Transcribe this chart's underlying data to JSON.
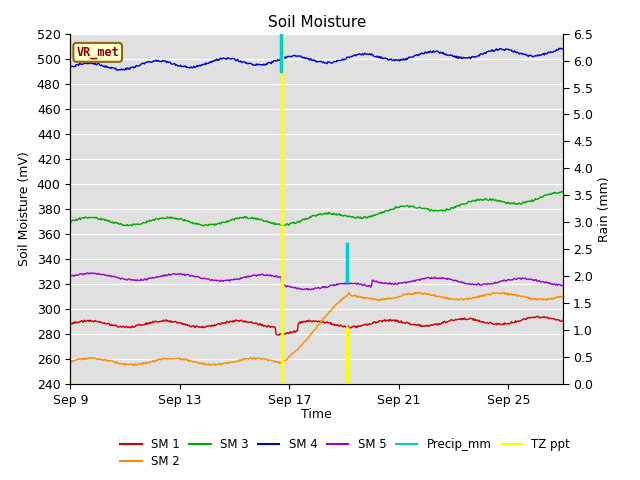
{
  "title": "Soil Moisture",
  "xlabel": "Time",
  "ylabel_left": "Soil Moisture (mV)",
  "ylabel_right": "Rain (mm)",
  "ylim_left": [
    240,
    520
  ],
  "ylim_right": [
    0.0,
    6.5
  ],
  "yticks_left": [
    240,
    260,
    280,
    300,
    320,
    340,
    360,
    380,
    400,
    420,
    440,
    460,
    480,
    500,
    520
  ],
  "yticks_right": [
    0.0,
    0.5,
    1.0,
    1.5,
    2.0,
    2.5,
    3.0,
    3.5,
    4.0,
    4.5,
    5.0,
    5.5,
    6.0,
    6.5
  ],
  "xtick_positions": [
    9,
    13,
    17,
    21,
    25
  ],
  "xtick_labels": [
    "Sep 9",
    "Sep 13",
    "Sep 17",
    "Sep 21",
    "Sep 25"
  ],
  "bg_color": "#e0e0e0",
  "vr_met_box_color": "#ffffcc",
  "vr_met_text_color": "#8b0000",
  "vr_met_border_color": "#8b6914",
  "sm1_color": "#cc0000",
  "sm2_color": "#ff8c00",
  "sm3_color": "#00aa00",
  "sm4_color": "#0000cc",
  "sm5_color": "#9900cc",
  "precip_color": "#00cccc",
  "tz_ppt_color": "#ffff00",
  "line_width": 1.0,
  "date_start": 9,
  "date_end": 27,
  "noise_seed": 42,
  "vline1_x": 16.72,
  "vline2_x": 19.1,
  "cyan1_x": 16.68,
  "cyan1_ymin": 490,
  "cyan1_ymax": 520,
  "cyan2_x": 19.1,
  "cyan2_ymin": 322,
  "cyan2_ymax": 352,
  "sm1_base": 288,
  "sm2_base": 258,
  "sm3_base": 370,
  "sm4_base": 493,
  "sm5_base": 326
}
